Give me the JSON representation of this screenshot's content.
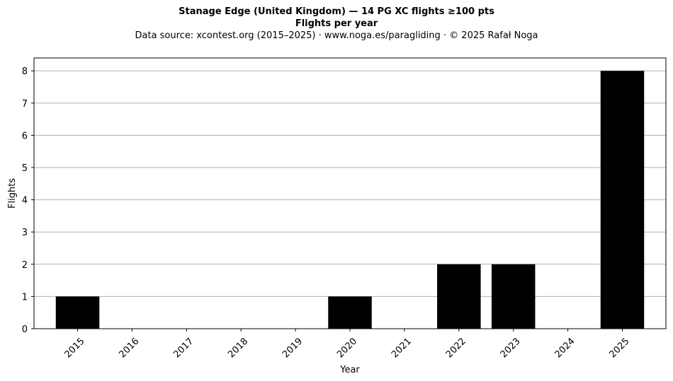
{
  "header": {
    "title": "Stanage Edge (United Kingdom)  —  14 PG XC flights ≥100 pts",
    "subtitle": "Flights per year",
    "source": "Data source: xcontest.org (2015–2025)  ·  www.noga.es/paragliding  ·  © 2025 Rafał Noga"
  },
  "chart_data": {
    "type": "bar",
    "title": "Stanage Edge (United Kingdom)  —  14 PG XC flights ≥100 pts",
    "subtitle": "Flights per year",
    "xlabel": "Year",
    "ylabel": "Flights",
    "categories": [
      "2015",
      "2016",
      "2017",
      "2018",
      "2019",
      "2020",
      "2021",
      "2022",
      "2023",
      "2024",
      "2025"
    ],
    "values": [
      1,
      0,
      0,
      0,
      0,
      1,
      0,
      2,
      2,
      0,
      8
    ],
    "ylim": [
      0,
      8.4
    ],
    "yticks": [
      0,
      1,
      2,
      3,
      4,
      5,
      6,
      7,
      8
    ],
    "grid": "y",
    "bar_color": "#000000",
    "grid_color": "#b0b0b0"
  }
}
